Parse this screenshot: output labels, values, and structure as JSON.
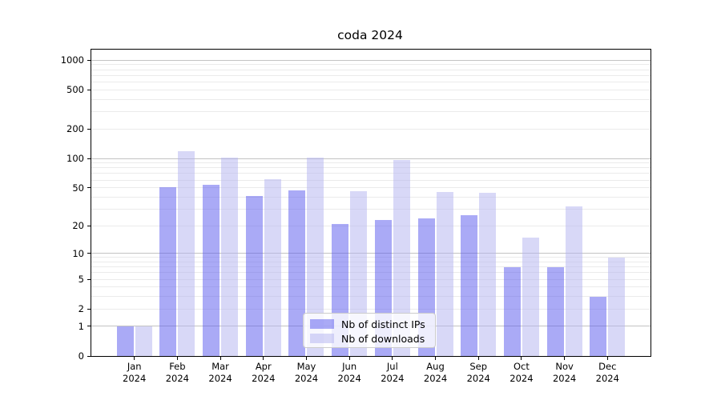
{
  "title": "coda 2024",
  "legend": {
    "items": [
      {
        "label": "Nb of distinct IPs",
        "color": "rgba(85,85,238,0.5)"
      },
      {
        "label": "Nb of downloads",
        "color": "rgba(177,177,240,0.5)"
      }
    ]
  },
  "axes": {
    "y_tick_values": [
      0,
      1,
      2,
      5,
      10,
      20,
      50,
      100,
      200,
      500,
      1000
    ],
    "y_tick_labels": [
      "0",
      "1",
      "2",
      "5",
      "10",
      "20",
      "50",
      "100",
      "200",
      "500",
      "1000"
    ],
    "y_major_grid_values": [
      1,
      10,
      100,
      1000
    ],
    "y_minor_grid_values": [
      2,
      3,
      4,
      5,
      6,
      7,
      8,
      9,
      20,
      30,
      40,
      50,
      60,
      70,
      80,
      90,
      200,
      300,
      400,
      500,
      600,
      700,
      800,
      900
    ],
    "x_tick_months": [
      "Jan",
      "Feb",
      "Mar",
      "Apr",
      "May",
      "Jun",
      "Jul",
      "Aug",
      "Sep",
      "Oct",
      "Nov",
      "Dec"
    ],
    "x_tick_year": "2024"
  },
  "chart_data": {
    "type": "bar",
    "title": "coda 2024",
    "categories": [
      "Jan 2024",
      "Feb 2024",
      "Mar 2024",
      "Apr 2024",
      "May 2024",
      "Jun 2024",
      "Jul 2024",
      "Aug 2024",
      "Sep 2024",
      "Oct 2024",
      "Nov 2024",
      "Dec 2024"
    ],
    "series": [
      {
        "name": "Nb of distinct IPs",
        "values": [
          1,
          51,
          54,
          41,
          47,
          21,
          23,
          24,
          26,
          7,
          7,
          3
        ]
      },
      {
        "name": "Nb of downloads",
        "values": [
          1,
          118,
          102,
          61,
          103,
          46,
          96,
          45,
          44,
          15,
          32,
          9
        ]
      }
    ],
    "xlabel": "",
    "ylabel": "",
    "yscale": "log(1+v)",
    "y_ticks": [
      0,
      1,
      2,
      5,
      10,
      20,
      50,
      100,
      200,
      500,
      1000
    ],
    "ylim": [
      0,
      1285
    ],
    "grid": true,
    "legend_position": "lower center"
  },
  "colors": {
    "bar_distinct_ips": "rgba(85,85,238,0.5)",
    "bar_downloads": "rgba(177,177,240,0.5)",
    "grid_major": "#c3c3c3",
    "grid_minor": "#ebebeb",
    "spine": "#000000",
    "text": "#000000",
    "legend_bg": "rgba(255,255,255,0.8)",
    "legend_border": "#cccccc"
  }
}
